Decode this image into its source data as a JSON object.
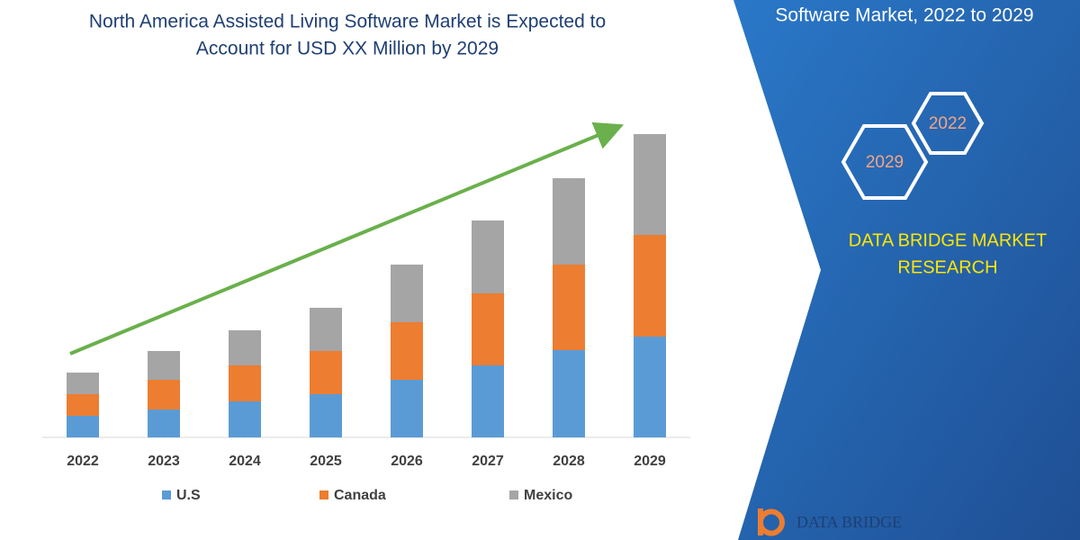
{
  "chart_data": {
    "type": "stacked_bar",
    "title": [
      "North America Assisted Living Software Market is Expected to",
      "Account for USD XX Million by 2029"
    ],
    "categories": [
      "2022",
      "2023",
      "2024",
      "2025",
      "2026",
      "2027",
      "2028",
      "2029"
    ],
    "series": [
      {
        "name": "U.S",
        "color": "#5b9bd5",
        "values": [
          24,
          31,
          40,
          48,
          64,
          80,
          97,
          112
        ]
      },
      {
        "name": "Canada",
        "color": "#ed7d31",
        "values": [
          24,
          33,
          40,
          48,
          64,
          80,
          95,
          113
        ]
      },
      {
        "name": "Mexico",
        "color": "#a5a5a5",
        "values": [
          24,
          32,
          39,
          48,
          64,
          81,
          96,
          112
        ]
      }
    ]
  },
  "panel": {
    "heading": "Software Market, 2022 to 2029",
    "hexagons": [
      "2022",
      "2029"
    ],
    "brand": [
      "DATA BRIDGE MARKET",
      "RESEARCH"
    ],
    "logo": "DATA BRIDGE"
  }
}
